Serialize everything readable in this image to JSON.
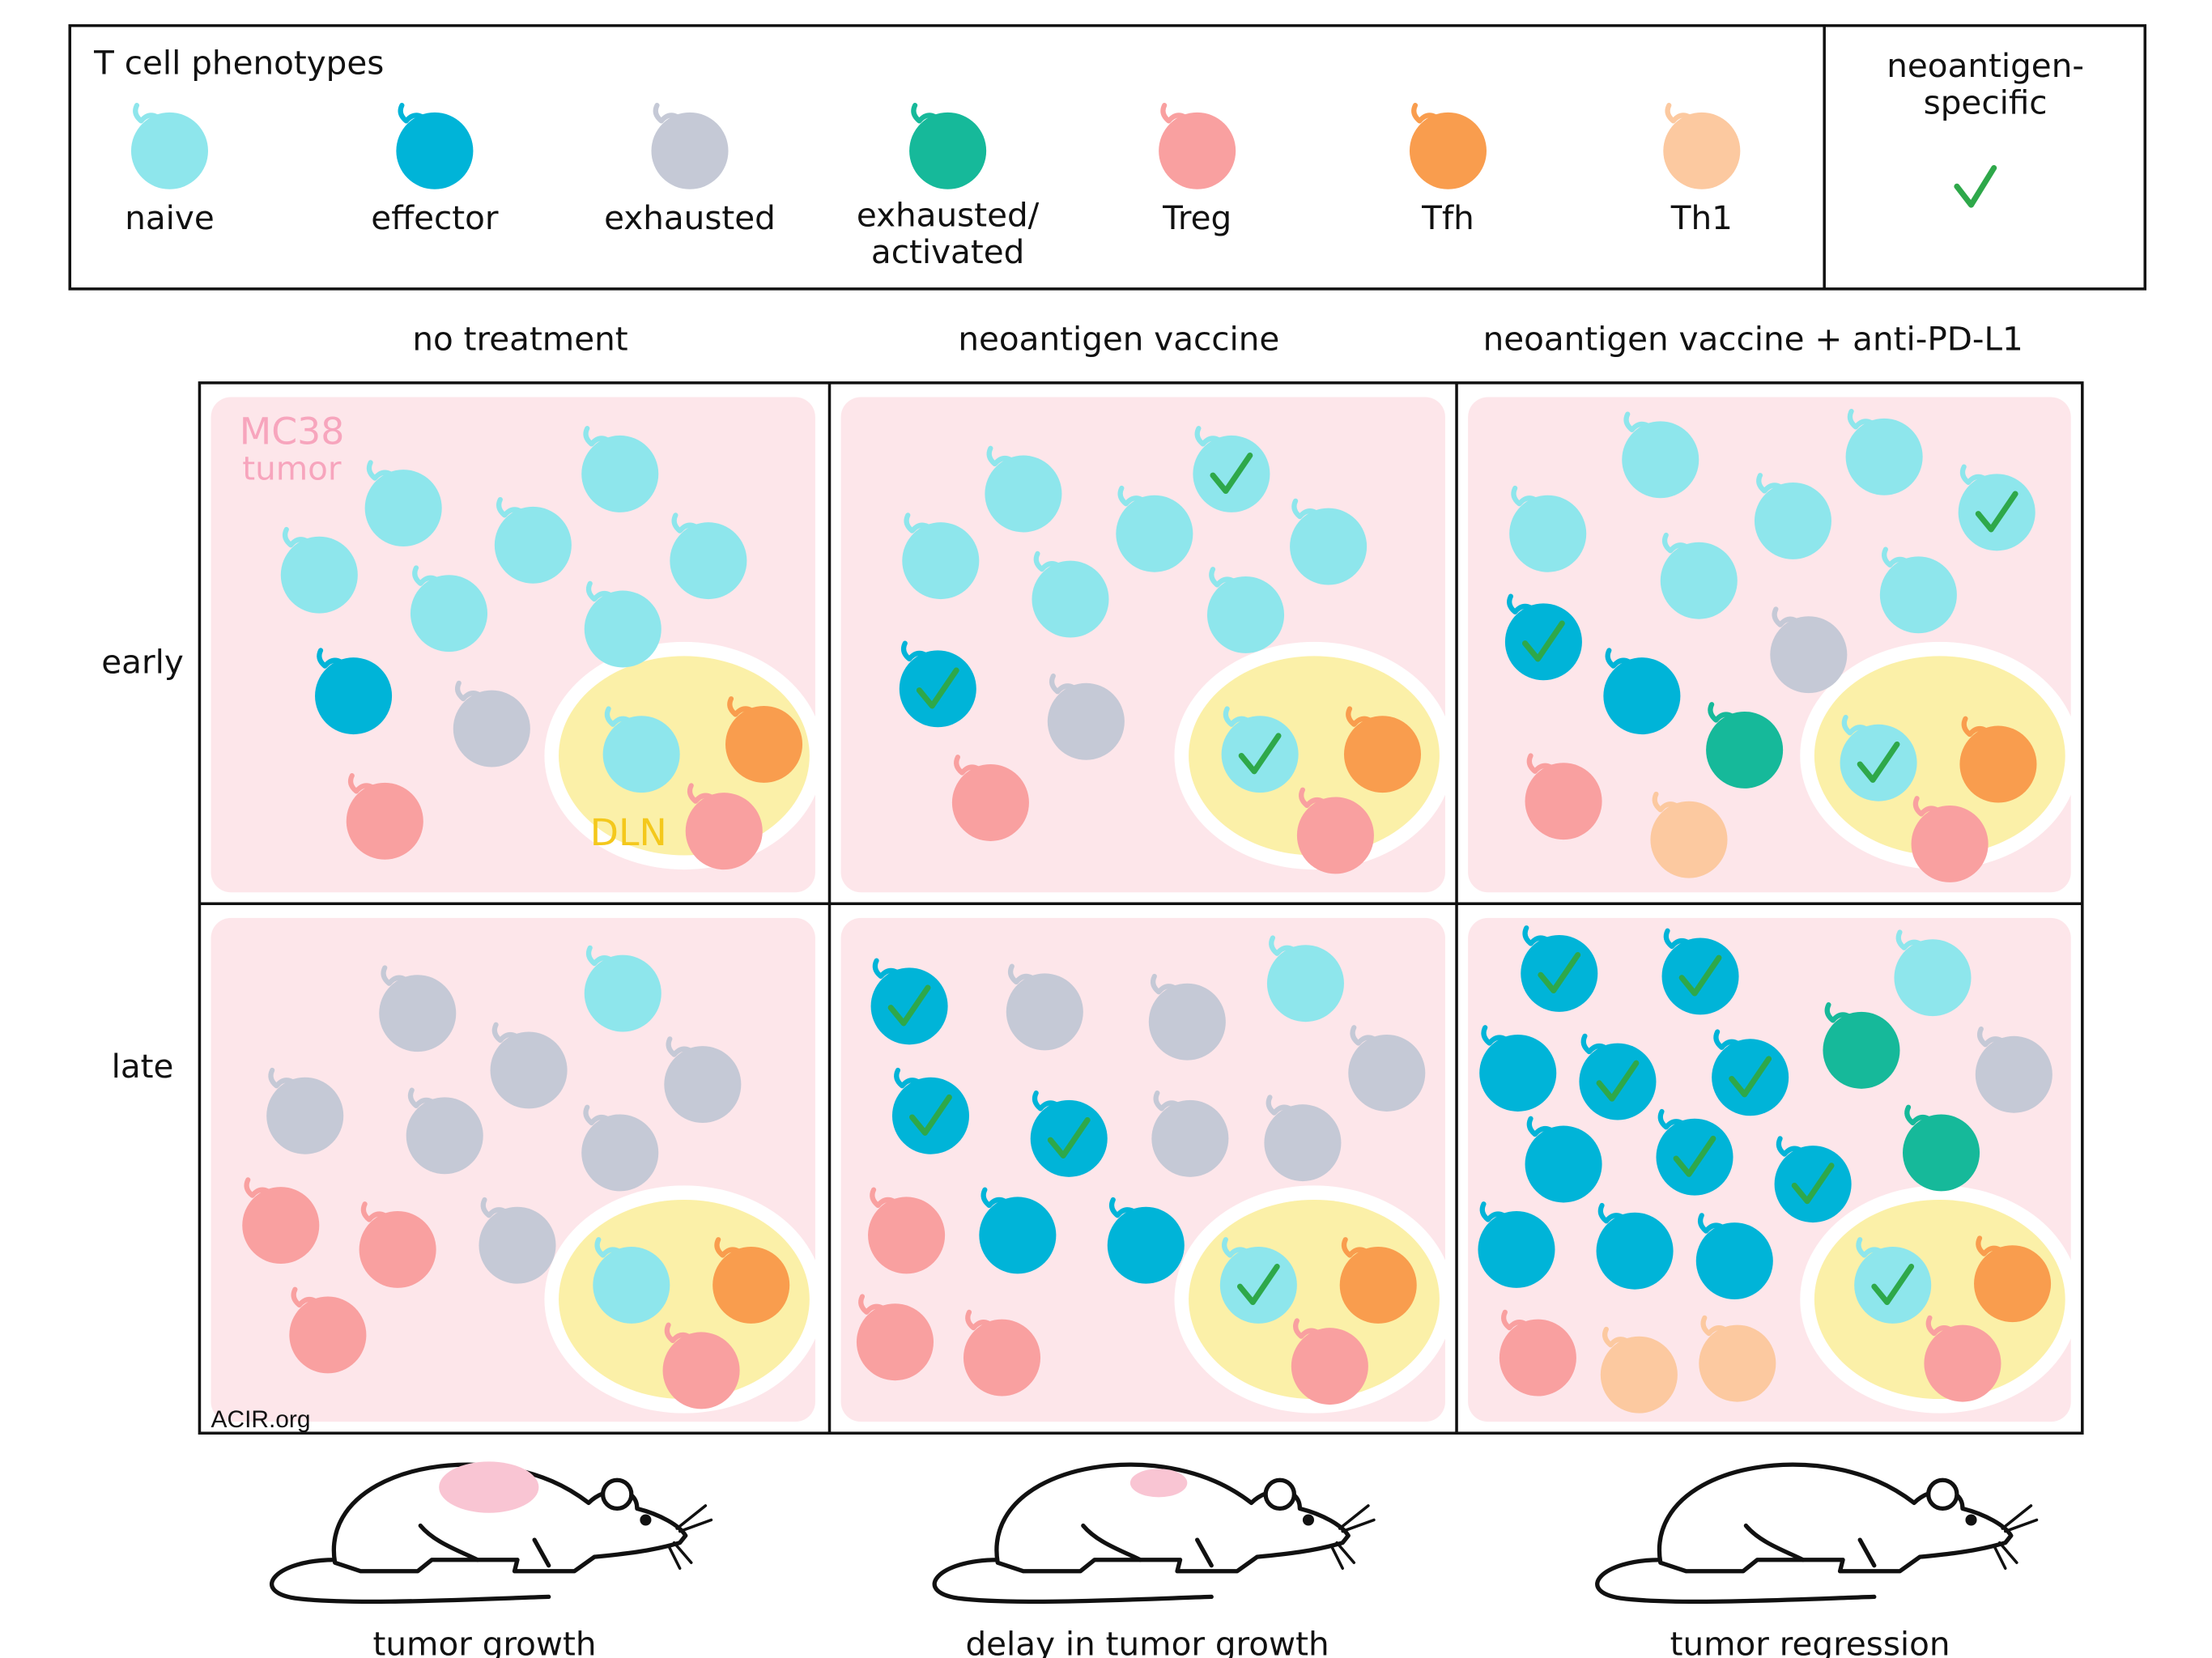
{
  "legend": {
    "title": "T cell phenotypes",
    "phenotypes": [
      [
        "naive"
      ],
      [
        "effector"
      ],
      [
        "exhausted"
      ],
      [
        "exhausted/",
        "activated"
      ],
      [
        "Treg"
      ],
      [
        "Tfh"
      ],
      [
        "Th1"
      ]
    ],
    "neoantigen_specific": [
      "neoantigen-",
      "specific"
    ]
  },
  "columns": [
    "no treatment",
    "neoantigen vaccine",
    "neoantigen vaccine + anti-PD-L1"
  ],
  "rows": [
    "early",
    "late"
  ],
  "tumor_label": [
    "MC38",
    "tumor"
  ],
  "dln_label": "DLN",
  "credit": "ACIR.org",
  "outcomes": [
    "tumor growth",
    "delay in tumor growth",
    "tumor regression"
  ]
}
